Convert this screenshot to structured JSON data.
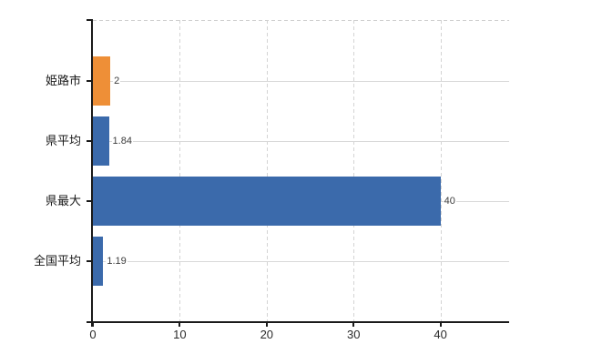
{
  "chart_data": {
    "type": "bar",
    "orientation": "horizontal",
    "title": "",
    "xlabel": "",
    "ylabel": "",
    "categories": [
      "姫路市",
      "県平均",
      "県最大",
      "全国平均"
    ],
    "values": [
      2,
      1.84,
      40,
      1.19
    ],
    "value_labels": [
      "2",
      "1.84",
      "40",
      "1.19"
    ],
    "bar_colors": [
      "#EE8F37",
      "#3B6AAB",
      "#3B6AAB",
      "#3B6AAB"
    ],
    "x_ticks": [
      0,
      10,
      20,
      30,
      40
    ],
    "x_tick_labels": [
      "0",
      "10",
      "20",
      "30",
      "40"
    ],
    "xlim": [
      0,
      47.9
    ],
    "grid": true,
    "legend_position": "none"
  },
  "colors": {
    "background": "#ffffff",
    "axis": "#1a1a1a",
    "hgrid": "#d9d9d9",
    "vgrid": "#d4d4d4",
    "top_border": "#cfcfcf",
    "value_label": "#3d3d3d",
    "category_label": "#1a1a1a",
    "tick_label": "#2b2b2b",
    "bar_blue": "#3B6AAB",
    "bar_orange": "#EE8F37"
  }
}
